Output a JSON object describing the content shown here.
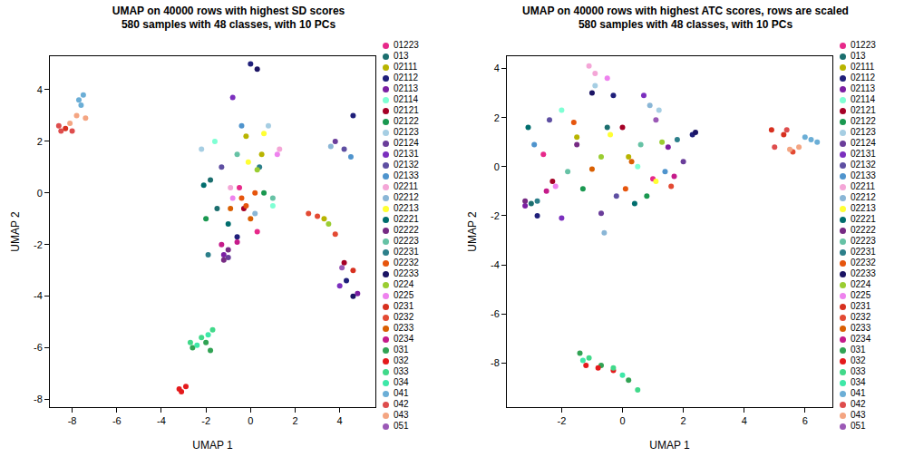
{
  "chart_data": [
    {
      "type": "scatter",
      "title": "UMAP on 40000 rows with highest SD scores\n580 samples with 48 classes, with 10 PCs",
      "x_label": "UMAP 1",
      "y_label": "UMAP 2",
      "xlim": [
        -9,
        5.6
      ],
      "ylim": [
        -8.3,
        5.3
      ],
      "xticks": [
        -8,
        -6,
        -4,
        -2,
        0,
        2,
        4
      ],
      "yticks": [
        -8,
        -6,
        -4,
        -2,
        0,
        2,
        4
      ],
      "marker": "circle",
      "legend": "right",
      "series": [
        {
          "name": "01223",
          "color": "#e7298a",
          "x": [
            0.3,
            -0.5
          ],
          "y": [
            -1.5,
            0.2
          ]
        },
        {
          "name": "013",
          "color": "#1b6e6e",
          "x": [
            -1.8,
            -1.5
          ],
          "y": [
            0.5,
            -0.6
          ]
        },
        {
          "name": "02111",
          "color": "#b8b400",
          "x": [
            0.5,
            -0.2,
            3.3
          ],
          "y": [
            1.5,
            2.2,
            -1.0
          ]
        },
        {
          "name": "02112",
          "color": "#1f1f7a",
          "x": [
            4.6,
            4.3,
            0.0,
            -0.6
          ],
          "y": [
            3.0,
            -3.4,
            5.0,
            -1.7
          ]
        },
        {
          "name": "02113",
          "color": "#7b1fa2",
          "x": [
            -1.2,
            4.8
          ],
          "y": [
            -2.4,
            -3.9
          ]
        },
        {
          "name": "02114",
          "color": "#7fffd4",
          "x": [
            1.0,
            -1.6
          ],
          "y": [
            -0.5,
            2.0
          ]
        },
        {
          "name": "02121",
          "color": "#a50026",
          "x": [
            4.2,
            -0.3
          ],
          "y": [
            -2.7,
            -0.6
          ]
        },
        {
          "name": "02122",
          "color": "#1a9850",
          "x": [
            -2.0,
            0.6
          ],
          "y": [
            -1.0,
            0.0
          ]
        },
        {
          "name": "02123",
          "color": "#a6cee3",
          "x": [
            -2.2,
            0.8
          ],
          "y": [
            1.7,
            2.6
          ]
        },
        {
          "name": "02124",
          "color": "#6a3d9a",
          "x": [
            3.8,
            -1.0
          ],
          "y": [
            2.0,
            -2.5
          ]
        },
        {
          "name": "02131",
          "color": "#7b2fbe",
          "x": [
            -0.8,
            4.0
          ],
          "y": [
            3.7,
            -3.6
          ]
        },
        {
          "name": "02132",
          "color": "#5e4fa2",
          "x": [
            4.2,
            -1.3
          ],
          "y": [
            1.7,
            1.0
          ]
        },
        {
          "name": "02133",
          "color": "#4f94cd",
          "x": [
            4.5,
            -0.4
          ],
          "y": [
            1.4,
            2.6
          ]
        },
        {
          "name": "02211",
          "color": "#f4a6d7",
          "x": [
            1.3,
            -0.9
          ],
          "y": [
            1.7,
            0.2
          ]
        },
        {
          "name": "02212",
          "color": "#8ab6d6",
          "x": [
            3.6,
            0.2
          ],
          "y": [
            1.8,
            -0.8
          ]
        },
        {
          "name": "02213",
          "color": "#ffff33",
          "x": [
            0.6,
            -0.1
          ],
          "y": [
            2.3,
            1.2
          ]
        },
        {
          "name": "02221",
          "color": "#006d6d",
          "x": [
            -2.1,
            -1.0
          ],
          "y": [
            0.3,
            -1.2
          ]
        },
        {
          "name": "02222",
          "color": "#762a83",
          "x": [
            -1.2,
            -1.0
          ],
          "y": [
            -2.6,
            -2.2
          ]
        },
        {
          "name": "02223",
          "color": "#66c2a5",
          "x": [
            -0.6,
            1.0
          ],
          "y": [
            1.5,
            -0.2
          ]
        },
        {
          "name": "02231",
          "color": "#2c7f8a",
          "x": [
            -1.9,
            0.4
          ],
          "y": [
            -2.4,
            1.0
          ]
        },
        {
          "name": "02232",
          "color": "#e6550d",
          "x": [
            -0.4,
            -0.2,
            0.2
          ],
          "y": [
            -0.2,
            -0.5,
            0.0
          ]
        },
        {
          "name": "02233",
          "color": "#1b1464",
          "x": [
            4.6,
            0.3
          ],
          "y": [
            -4.0,
            4.8
          ]
        },
        {
          "name": "0224",
          "color": "#9acd32",
          "x": [
            3.5,
            0.3
          ],
          "y": [
            -1.2,
            0.9
          ]
        },
        {
          "name": "0225",
          "color": "#ee82ee",
          "x": [
            1.2,
            -0.8
          ],
          "y": [
            1.5,
            -0.2
          ]
        },
        {
          "name": "0231",
          "color": "#d7301f",
          "x": [
            -8.3,
            4.6
          ],
          "y": [
            2.5,
            -3.0
          ]
        },
        {
          "name": "0232",
          "color": "#e34a33",
          "x": [
            2.6,
            3.0,
            3.8
          ],
          "y": [
            -0.8,
            -0.9,
            -1.6
          ]
        },
        {
          "name": "0233",
          "color": "#d95f02",
          "x": [
            -0.9,
            0.0
          ],
          "y": [
            -0.6,
            -1.0
          ]
        },
        {
          "name": "0234",
          "color": "#c51b8a",
          "x": [
            -0.6,
            -1.3
          ],
          "y": [
            -1.9,
            -2.0
          ]
        },
        {
          "name": "031",
          "color": "#31a354",
          "x": [
            -2.6,
            -2.0,
            -1.8
          ],
          "y": [
            -6.0,
            -5.8,
            -6.1
          ]
        },
        {
          "name": "032",
          "color": "#e41a1c",
          "x": [
            -3.1,
            -2.9,
            -3.2
          ],
          "y": [
            -7.7,
            -7.5,
            -7.6
          ]
        },
        {
          "name": "033",
          "color": "#41d98a",
          "x": [
            -1.7,
            -2.2,
            -2.7
          ],
          "y": [
            -5.3,
            -5.6,
            -5.8
          ]
        },
        {
          "name": "034",
          "color": "#3ee8a8",
          "x": [
            -1.9,
            -2.4
          ],
          "y": [
            -5.5,
            -5.9
          ]
        },
        {
          "name": "041",
          "color": "#6baed6",
          "x": [
            -7.7,
            -7.5,
            -7.6
          ],
          "y": [
            3.6,
            3.8,
            3.4
          ]
        },
        {
          "name": "042",
          "color": "#de4d4d",
          "x": [
            -8.5,
            -8.0,
            -8.6
          ],
          "y": [
            2.4,
            2.4,
            2.6
          ]
        },
        {
          "name": "043",
          "color": "#f4a582",
          "x": [
            -7.8,
            -7.4,
            -8.1
          ],
          "y": [
            3.0,
            2.9,
            2.7
          ]
        },
        {
          "name": "051",
          "color": "#9b59b6",
          "x": [
            4.1
          ],
          "y": [
            -2.9
          ]
        }
      ]
    },
    {
      "type": "scatter",
      "title": "UMAP on 40000 rows with highest ATC scores, rows are scaled\n580 samples with 48 classes, with 10 PCs",
      "x_label": "UMAP 1",
      "y_label": "UMAP 2",
      "xlim": [
        -3.8,
        6.9
      ],
      "ylim": [
        -9.8,
        4.5
      ],
      "xticks": [
        -2,
        0,
        2,
        4,
        6
      ],
      "yticks": [
        -8,
        -6,
        -4,
        -2,
        0,
        2,
        4
      ],
      "marker": "circle",
      "legend": "right",
      "series": [
        {
          "name": "01223",
          "color": "#e7298a",
          "x": [
            -2.6,
            1.0
          ],
          "y": [
            0.5,
            -0.5
          ]
        },
        {
          "name": "013",
          "color": "#1b6e6e",
          "x": [
            -3.0,
            -0.5
          ],
          "y": [
            -1.5,
            1.6
          ]
        },
        {
          "name": "02111",
          "color": "#b8b400",
          "x": [
            -1.5,
            0.2
          ],
          "y": [
            1.2,
            0.4
          ]
        },
        {
          "name": "02112",
          "color": "#1f1f7a",
          "x": [
            -2.8,
            -0.3,
            2.3
          ],
          "y": [
            -2.0,
            2.9,
            1.3
          ]
        },
        {
          "name": "02113",
          "color": "#7b1fa2",
          "x": [
            -3.2,
            1.5
          ],
          "y": [
            -1.6,
            0.8
          ]
        },
        {
          "name": "02114",
          "color": "#7fffd4",
          "x": [
            0.5,
            -2.0
          ],
          "y": [
            0.0,
            2.3
          ]
        },
        {
          "name": "02121",
          "color": "#a50026",
          "x": [
            0.0,
            -2.3
          ],
          "y": [
            1.6,
            -0.6
          ]
        },
        {
          "name": "02122",
          "color": "#1a9850",
          "x": [
            -1.3,
            0.8
          ],
          "y": [
            -0.9,
            -1.2
          ]
        },
        {
          "name": "02123",
          "color": "#a6cee3",
          "x": [
            1.2,
            -0.9
          ],
          "y": [
            2.3,
            3.3
          ]
        },
        {
          "name": "02124",
          "color": "#6a3d9a",
          "x": [
            -0.7,
            2.0
          ],
          "y": [
            -1.9,
            0.2
          ]
        },
        {
          "name": "02131",
          "color": "#7b2fbe",
          "x": [
            -2.0,
            0.7
          ],
          "y": [
            -2.1,
            2.9
          ]
        },
        {
          "name": "02132",
          "color": "#5e4fa2",
          "x": [
            -0.2,
            -2.4
          ],
          "y": [
            -1.2,
            1.9
          ]
        },
        {
          "name": "02133",
          "color": "#4f94cd",
          "x": [
            -2.9,
            1.4
          ],
          "y": [
            0.9,
            -0.2
          ]
        },
        {
          "name": "02211",
          "color": "#f4a6d7",
          "x": [
            -1.1,
            -0.9
          ],
          "y": [
            4.1,
            3.8
          ]
        },
        {
          "name": "02212",
          "color": "#8ab6d6",
          "x": [
            -0.6,
            0.9
          ],
          "y": [
            -2.7,
            2.5
          ]
        },
        {
          "name": "02213",
          "color": "#ffff33",
          "x": [
            -0.4,
            1.1
          ],
          "y": [
            1.3,
            -0.6
          ]
        },
        {
          "name": "02221",
          "color": "#006d6d",
          "x": [
            -3.1,
            0.4
          ],
          "y": [
            1.6,
            -1.5
          ]
        },
        {
          "name": "02222",
          "color": "#762a83",
          "x": [
            -3.2,
            -1.5
          ],
          "y": [
            -1.4,
            0.9
          ]
        },
        {
          "name": "02223",
          "color": "#66c2a5",
          "x": [
            -1.8,
            0.6
          ],
          "y": [
            -0.2,
            0.9
          ]
        },
        {
          "name": "02231",
          "color": "#2c7f8a",
          "x": [
            -2.8,
            1.8
          ],
          "y": [
            -1.4,
            1.1
          ]
        },
        {
          "name": "02232",
          "color": "#e6550d",
          "x": [
            -1.6,
            0.1
          ],
          "y": [
            1.8,
            -0.9
          ]
        },
        {
          "name": "02233",
          "color": "#1b1464",
          "x": [
            -1.0,
            2.4
          ],
          "y": [
            3.0,
            1.4
          ]
        },
        {
          "name": "0224",
          "color": "#9acd32",
          "x": [
            -0.7,
            1.3
          ],
          "y": [
            0.4,
            1.0
          ]
        },
        {
          "name": "0225",
          "color": "#ee82ee",
          "x": [
            -0.5,
            -2.2
          ],
          "y": [
            3.6,
            -0.8
          ]
        },
        {
          "name": "0231",
          "color": "#d7301f",
          "x": [
            4.9,
            5.3
          ],
          "y": [
            1.5,
            1.3
          ]
        },
        {
          "name": "0232",
          "color": "#e34a33",
          "x": [
            5.6,
            1.6
          ],
          "y": [
            0.6,
            -0.8
          ]
        },
        {
          "name": "0233",
          "color": "#d95f02",
          "x": [
            -1.0,
            0.3
          ],
          "y": [
            -0.1,
            0.2
          ]
        },
        {
          "name": "0234",
          "color": "#c51b8a",
          "x": [
            -2.5,
            1.7
          ],
          "y": [
            -1.0,
            -0.4
          ]
        },
        {
          "name": "031",
          "color": "#31a354",
          "x": [
            -1.4,
            -0.7,
            0.2
          ],
          "y": [
            -7.6,
            -8.1,
            -8.7
          ]
        },
        {
          "name": "032",
          "color": "#e41a1c",
          "x": [
            -1.2,
            -0.8,
            -0.3
          ],
          "y": [
            -8.1,
            -8.2,
            -8.3
          ]
        },
        {
          "name": "033",
          "color": "#41d98a",
          "x": [
            -1.1,
            0.5,
            -0.3
          ],
          "y": [
            -7.8,
            -9.1,
            -8.2
          ]
        },
        {
          "name": "034",
          "color": "#3ee8a8",
          "x": [
            0.0,
            -1.3
          ],
          "y": [
            -8.5,
            -7.9
          ]
        },
        {
          "name": "041",
          "color": "#6baed6",
          "x": [
            6.2,
            6.4,
            6.0
          ],
          "y": [
            1.1,
            1.0,
            1.2
          ]
        },
        {
          "name": "042",
          "color": "#de4d4d",
          "x": [
            5.0,
            5.4
          ],
          "y": [
            0.8,
            1.5
          ]
        },
        {
          "name": "043",
          "color": "#f4a582",
          "x": [
            5.8,
            5.5
          ],
          "y": [
            0.8,
            0.7
          ]
        },
        {
          "name": "051",
          "color": "#9b59b6",
          "x": [
            1.1
          ],
          "y": [
            1.9
          ]
        }
      ]
    }
  ]
}
